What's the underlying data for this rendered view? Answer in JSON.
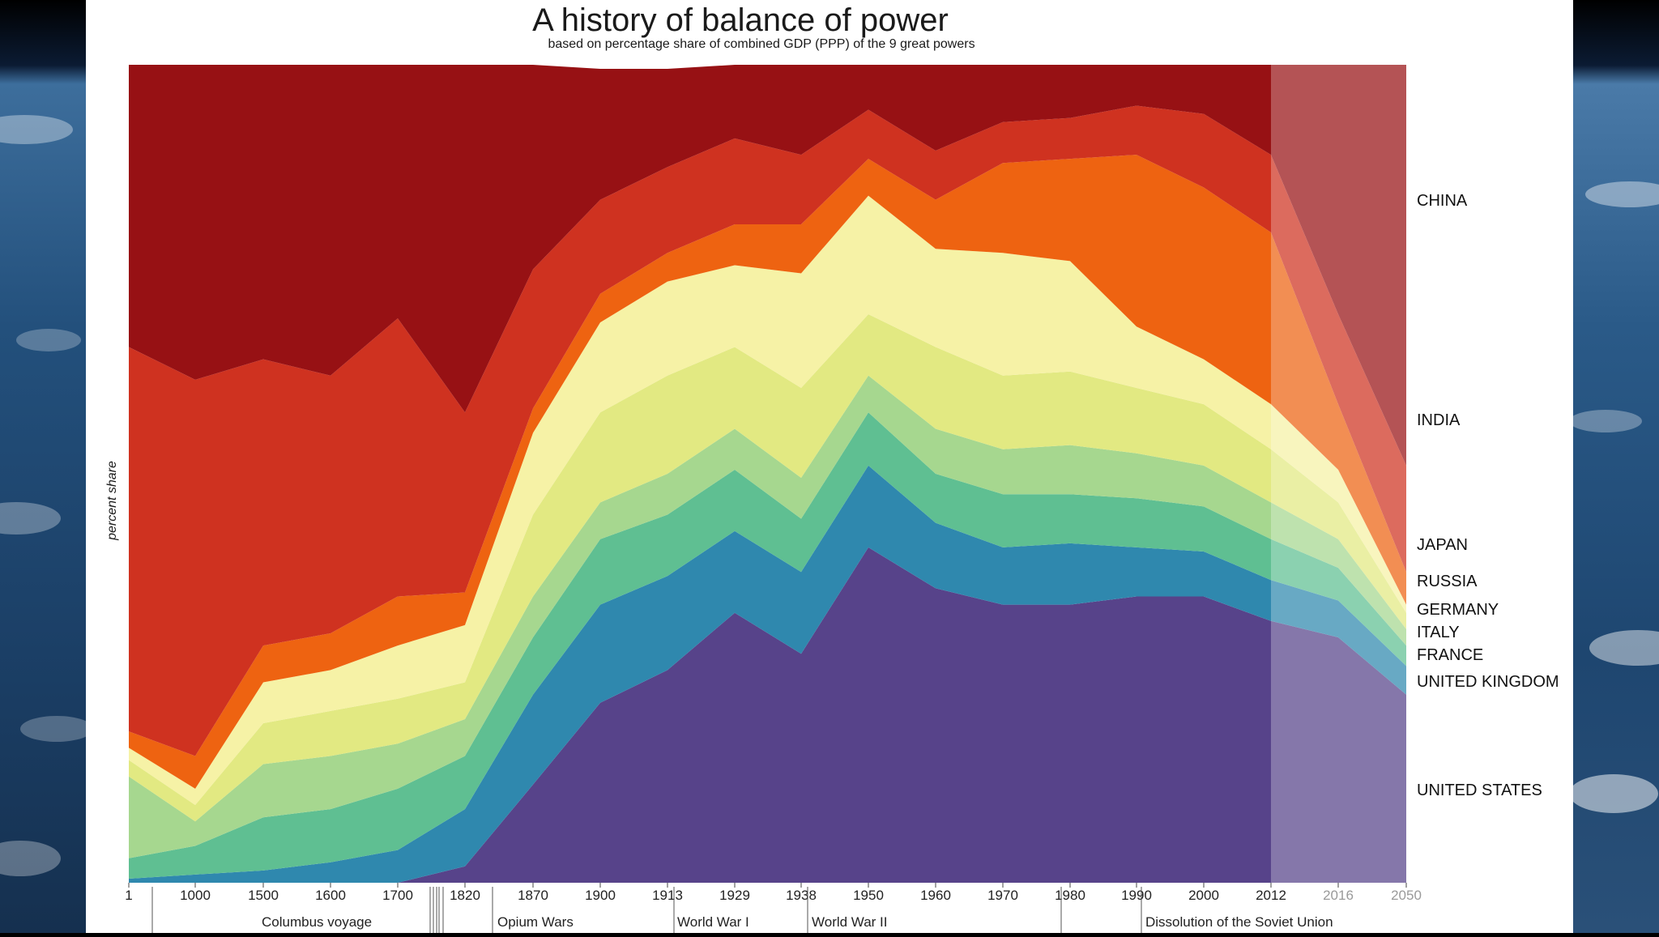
{
  "colors": {
    "background": "#ffffff",
    "china": "#971114",
    "india": "#cf3220",
    "japan": "#ee6311",
    "russia": "#f6f2a6",
    "germany": "#e2e982",
    "italy": "#a6d78f",
    "france": "#5fbf92",
    "united_kingdom": "#2f88ae",
    "united_states": "#57438a"
  },
  "chart_data": {
    "type": "area",
    "stacked": true,
    "normalized": true,
    "title": "A history of  balance of power",
    "subtitle": "based on percentage share of combined GDP (PPP) of the 9 great powers",
    "ylabel": "percent share",
    "xlabel": "",
    "ylim": [
      0,
      100
    ],
    "y_ticks_shown": false,
    "grid": false,
    "legend": "series labels at right edge",
    "x": [
      "1",
      "1000",
      "1500",
      "1600",
      "1700",
      "1820",
      "1870",
      "1900",
      "1913",
      "1929",
      "1938",
      "1950",
      "1960",
      "1970",
      "1980",
      "1990",
      "2000",
      "2012",
      "2016",
      "2050"
    ],
    "projection_from": "2012",
    "series": [
      {
        "name": "UNITED STATES",
        "values": [
          0,
          0,
          0,
          0,
          0,
          2,
          12,
          22,
          26,
          33,
          28,
          41,
          36,
          34,
          34,
          35,
          35,
          32,
          30,
          23
        ]
      },
      {
        "name": "UNITED KINGDOM",
        "values": [
          0.5,
          1,
          1.5,
          2.5,
          4,
          7,
          11,
          12,
          11.5,
          10,
          10,
          10,
          8,
          7,
          7.5,
          6,
          5.5,
          5,
          4.5,
          3.5
        ]
      },
      {
        "name": "FRANCE",
        "values": [
          2.5,
          3.5,
          6.5,
          6.5,
          7.5,
          6.5,
          7,
          8,
          7.5,
          7.5,
          6.5,
          6.5,
          6,
          6.5,
          6,
          6,
          5.5,
          5,
          4,
          2.5
        ]
      },
      {
        "name": "ITALY",
        "values": [
          10,
          3,
          6.5,
          6.5,
          5.5,
          4.5,
          5,
          4.5,
          5,
          5,
          5,
          4.5,
          5.5,
          5.5,
          6,
          5.5,
          5,
          4.5,
          3.5,
          2
        ]
      },
      {
        "name": "GERMANY",
        "values": [
          2,
          2,
          5,
          5.5,
          5.5,
          4.5,
          10,
          11,
          12,
          10,
          11,
          7.5,
          10,
          9,
          9,
          8,
          7.5,
          6.5,
          4.5,
          2
        ]
      },
      {
        "name": "RUSSIA",
        "values": [
          1.5,
          2,
          5,
          5,
          6.5,
          7,
          10,
          11,
          11.5,
          10,
          14,
          14.5,
          12,
          15,
          13.5,
          7.5,
          5.5,
          5.5,
          4,
          1
        ]
      },
      {
        "name": "JAPAN",
        "values": [
          2,
          4,
          4.5,
          4.5,
          6,
          4,
          3,
          3.5,
          3.5,
          5,
          6,
          4.5,
          6,
          11,
          12.5,
          21,
          21,
          21,
          8,
          4
        ]
      },
      {
        "name": "INDIA",
        "values": [
          47,
          46,
          35,
          31.5,
          34,
          22,
          17,
          11.5,
          10.5,
          10.5,
          8.5,
          6,
          6,
          5,
          5,
          6,
          9,
          9.5,
          11,
          13
        ]
      },
      {
        "name": "CHINA",
        "values": [
          34.5,
          38.5,
          36,
          38.5,
          31,
          42.5,
          25,
          16,
          12,
          9,
          11,
          5.5,
          10.5,
          7,
          7.5,
          5,
          10.5,
          11,
          30.5,
          49
        ]
      }
    ],
    "events": [
      "Columbus voyage",
      "Opium Wars",
      "World War I",
      "World War II",
      "Dissolution of the Soviet Union"
    ]
  }
}
